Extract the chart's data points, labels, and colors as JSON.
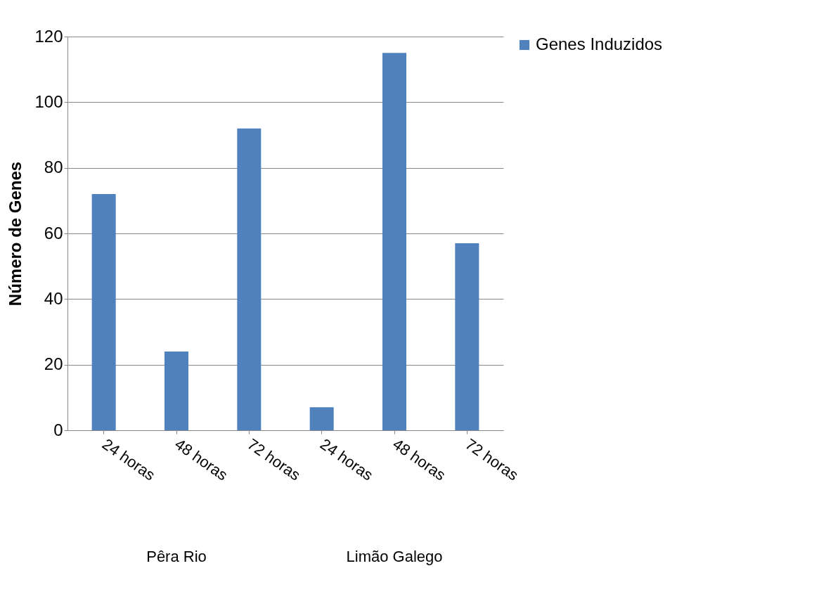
{
  "chart_data": {
    "type": "bar",
    "ylabel": "Número de Genes",
    "categories": [
      "24 horas",
      "48 horas",
      "72 horas",
      "24 horas",
      "48 horas",
      "72 horas"
    ],
    "series": [
      {
        "name": "Genes Induzidos",
        "color": "#4f81bd",
        "values": [
          72,
          24,
          92,
          7,
          115,
          57
        ]
      }
    ],
    "ylim": [
      0,
      120
    ],
    "yticks": [
      0,
      20,
      40,
      60,
      80,
      100,
      120
    ],
    "grid": "y",
    "legend": "right",
    "annotations": [
      "Pêra Rio",
      "Limão Galego"
    ]
  }
}
